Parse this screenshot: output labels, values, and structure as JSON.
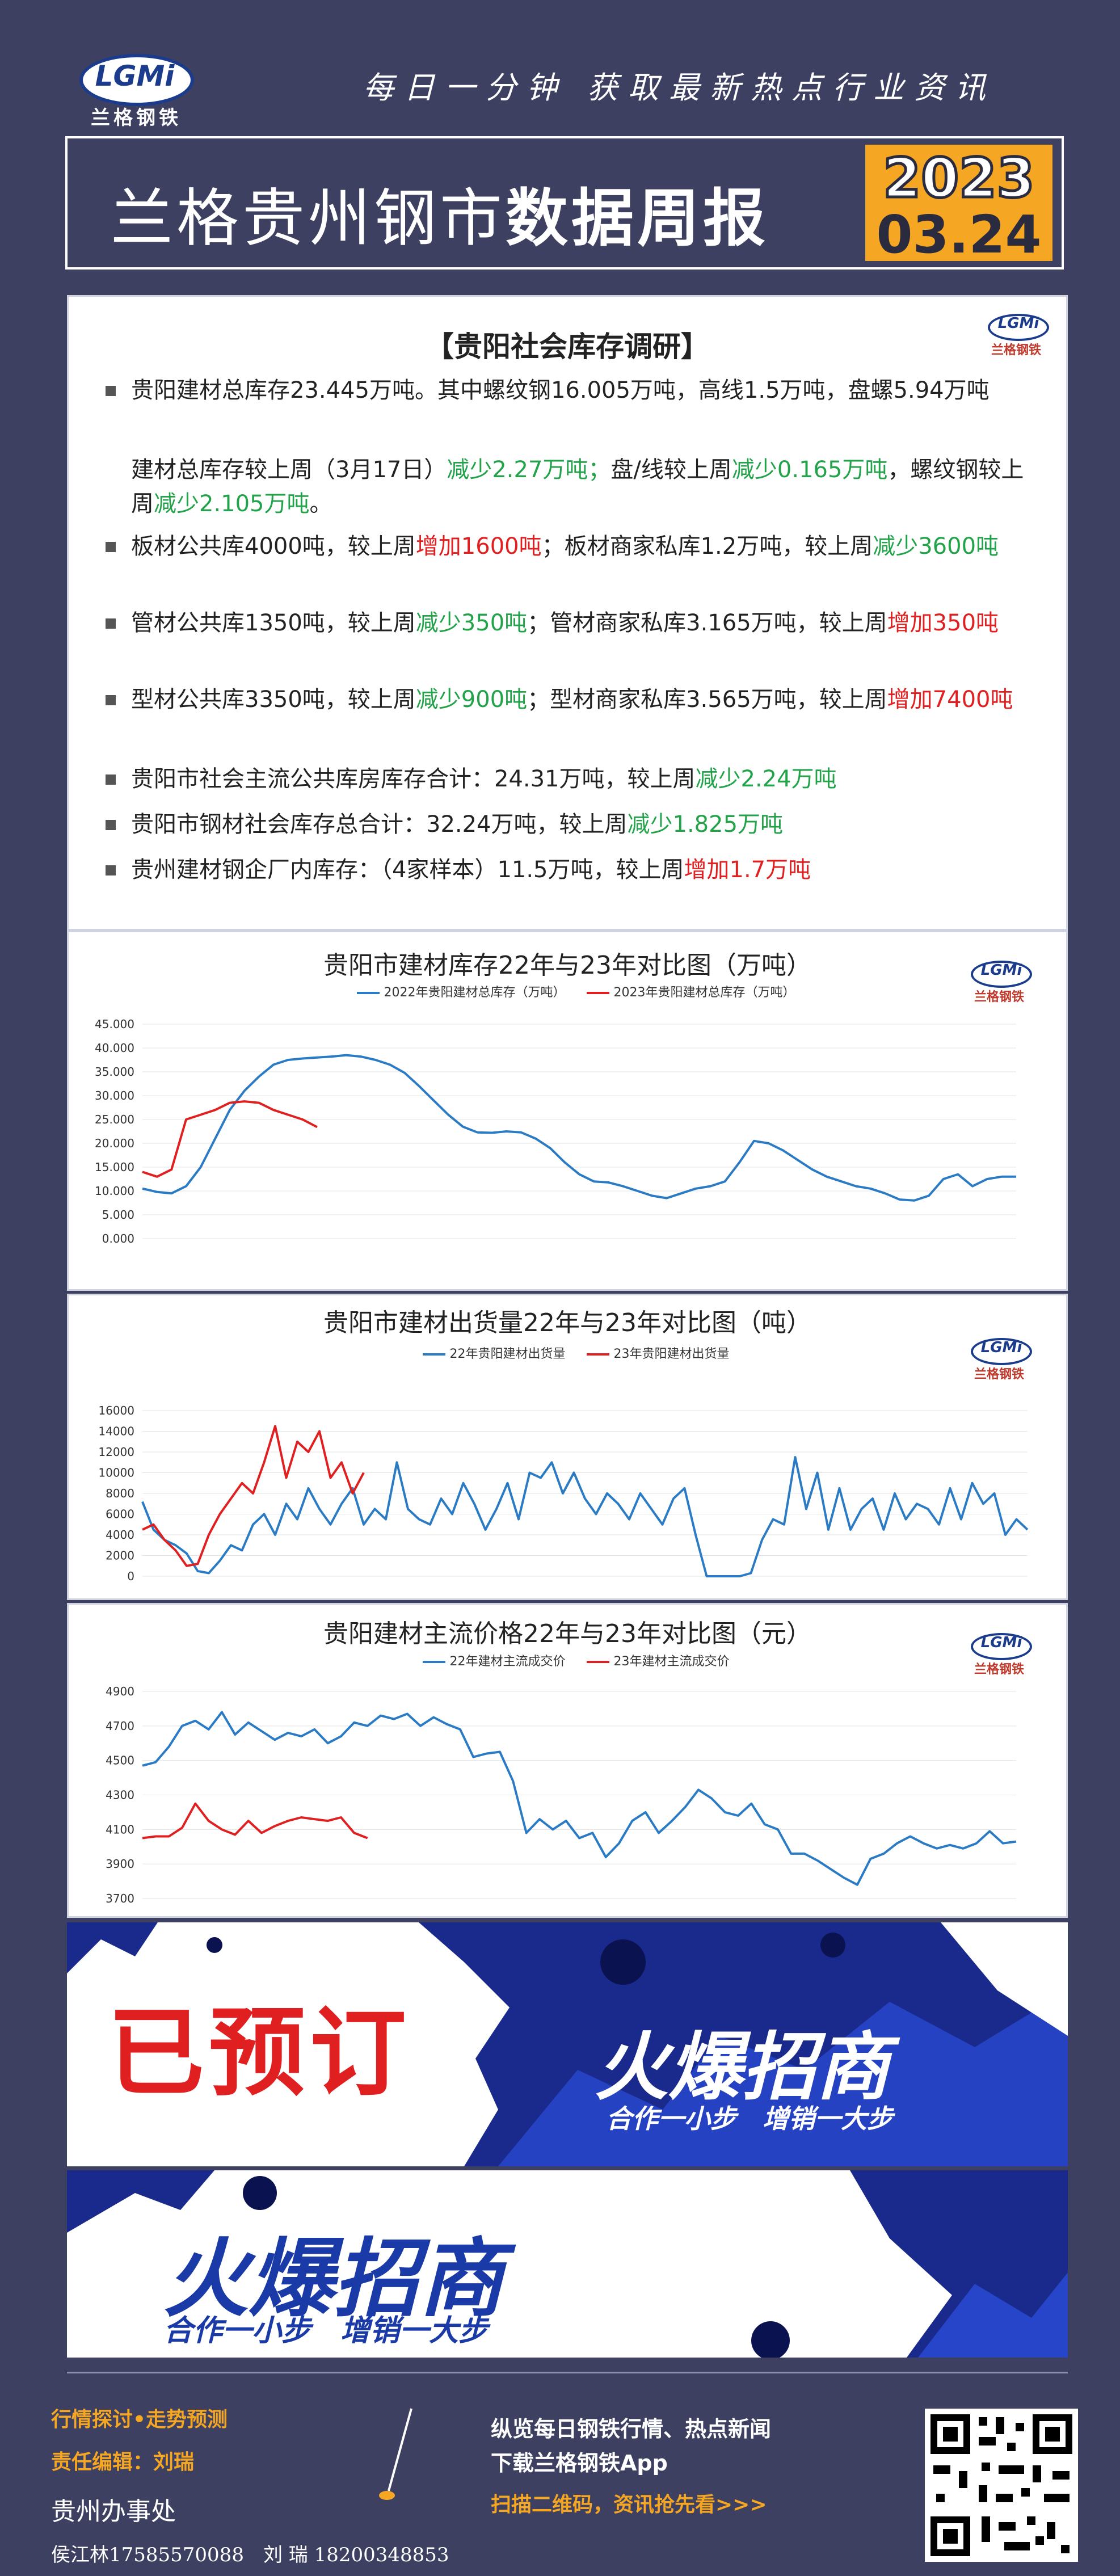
{
  "header": {
    "logo": "LGMi",
    "logo_sub": "兰格钢铁",
    "slogan": "每日一分钟 获取最新热点行业资讯",
    "title_light": "兰格贵州钢市",
    "title_bold": "数据周报",
    "year": "2023",
    "date": "03.24"
  },
  "survey": {
    "title": "【贵阳社会库存调研】",
    "lines": [
      {
        "a": "贵阳建材总库存23.445万吨。其中螺纹钢16.005万吨，高线1.5万吨，盘螺5.94万吨",
        "b": "",
        "c": "",
        "d": "",
        "e": ""
      },
      {
        "a": "建材总库存较上周（3月17日）",
        "b": "减少2.27万吨；",
        "c": "盘/线较上周",
        "d": "减少0.165万吨",
        "e": "，螺纹钢较上周",
        "f": "减少2.105万吨",
        "g": "。"
      },
      {
        "a": "板材公共库4000吨，较上周",
        "b": "增加1600吨",
        "c": "；板材商家私库1.2万吨，较上周",
        "d": "减少3600吨"
      },
      {
        "a": "管材公共库1350吨，较上周",
        "b": "减少350吨",
        "c": "；管材商家私库3.165万吨，较上周",
        "d": "增加350吨"
      },
      {
        "a": "型材公共库3350吨，较上周",
        "b": "减少900吨",
        "c": "；型材商家私库3.565万吨，较上周",
        "d": "增加7400吨"
      },
      {
        "a": "贵阳市社会主流公共库房库存合计：24.31万吨，较上周",
        "b": "减少2.24万吨"
      },
      {
        "a": "贵阳市钢材社会库存总合计：32.24万吨，较上周",
        "b": "减少1.825万吨"
      },
      {
        "a": "贵州建材钢企厂内库存：（4家样本）11.5万吨，较上周",
        "b": "增加1.7万吨"
      }
    ]
  },
  "colors": {
    "blue": "#2a7bc4",
    "red": "#e02020",
    "green": "#22a34a",
    "bg": "#3d4060",
    "accent": "#f5a623"
  },
  "chart_data": [
    {
      "type": "line",
      "title": "贵阳市建材库存22年与23年对比图（万吨）",
      "series": [
        {
          "name": "2022年贵阳建材总库存（万吨）",
          "values": [
            10.5,
            9.8,
            9.5,
            11,
            15,
            21,
            27,
            31,
            34,
            36.5,
            37.5,
            37.8,
            38,
            38.2,
            38.5,
            38.2,
            37.5,
            36.5,
            34.8,
            32,
            29,
            26,
            23.5,
            22.3,
            22.2,
            22.5,
            22.3,
            21,
            19,
            16,
            13.5,
            12,
            11.8,
            11,
            10,
            9,
            8.5,
            9.5,
            10.5,
            11,
            12,
            16,
            20.5,
            20,
            18.5,
            16.5,
            14.5,
            13,
            12,
            11,
            10.5,
            9.5,
            8.2,
            8,
            9,
            12.5,
            13.5,
            11,
            12.5,
            13,
            13
          ]
        },
        {
          "name": "2023年贵阳建材总库存（万吨）",
          "values": [
            14,
            13,
            14.5,
            25,
            26,
            27,
            28.5,
            28.8,
            28.5,
            27,
            26,
            25,
            23.4
          ]
        }
      ],
      "ylim": [
        0,
        45
      ],
      "ytick_labels": [
        "0.000",
        "5.000",
        "10.000",
        "15.000",
        "20.000",
        "25.000",
        "30.000",
        "35.000",
        "40.000",
        "45.000"
      ]
    },
    {
      "type": "line",
      "title": "贵阳市建材出货量22年与23年对比图（吨）",
      "series": [
        {
          "name": "22年贵阳建材出货量",
          "values": [
            7200,
            4500,
            3500,
            3000,
            2200,
            500,
            300,
            1500,
            3000,
            2500,
            5000,
            6000,
            4000,
            7000,
            5500,
            8500,
            6500,
            5000,
            7000,
            8500,
            5000,
            6500,
            5500,
            11000,
            6500,
            5500,
            5000,
            7500,
            6000,
            9000,
            7000,
            4500,
            6500,
            9000,
            5500,
            10000,
            9500,
            11000,
            8000,
            10000,
            7500,
            6000,
            8000,
            7000,
            5500,
            8000,
            6500,
            5000,
            7500,
            8500,
            4000,
            0,
            0,
            0,
            0,
            300,
            3500,
            5500,
            5000,
            11500,
            6500,
            10000,
            4500,
            8500,
            4500,
            6500,
            7500,
            4500,
            8000,
            5500,
            7000,
            6500,
            5000,
            8500,
            5500,
            9000,
            7000,
            8000,
            4000,
            5500,
            4500
          ]
        },
        {
          "name": "23年贵阳建材出货量",
          "values": [
            4500,
            5000,
            3500,
            2500,
            1000,
            1200,
            4000,
            6000,
            7500,
            9000,
            8000,
            11000,
            14500,
            9500,
            13000,
            12000,
            14000,
            9500,
            11000,
            8000,
            10000
          ]
        }
      ],
      "ylim": [
        0,
        16000
      ],
      "ytick_labels": [
        "0",
        "2000",
        "4000",
        "6000",
        "8000",
        "10000",
        "12000",
        "14000",
        "16000"
      ]
    },
    {
      "type": "line",
      "title": "贵阳建材主流价格22年与23年对比图（元）",
      "series": [
        {
          "name": "22年建材主流成交价",
          "values": [
            4470,
            4490,
            4580,
            4700,
            4730,
            4680,
            4780,
            4650,
            4720,
            4670,
            4620,
            4660,
            4640,
            4680,
            4600,
            4640,
            4720,
            4700,
            4760,
            4740,
            4770,
            4700,
            4750,
            4710,
            4680,
            4520,
            4540,
            4550,
            4380,
            4080,
            4160,
            4100,
            4150,
            4050,
            4080,
            3940,
            4020,
            4150,
            4200,
            4080,
            4150,
            4230,
            4330,
            4280,
            4200,
            4180,
            4250,
            4130,
            4100,
            3960,
            3960,
            3920,
            3870,
            3820,
            3780,
            3930,
            3960,
            4020,
            4060,
            4020,
            3990,
            4010,
            3990,
            4020,
            4090,
            4020,
            4030
          ]
        },
        {
          "name": "23年建材主流成交价",
          "values": [
            4050,
            4060,
            4060,
            4110,
            4250,
            4150,
            4100,
            4070,
            4150,
            4080,
            4120,
            4150,
            4170,
            4160,
            4150,
            4170,
            4080,
            4050
          ]
        }
      ],
      "ylim": [
        3700,
        4900
      ],
      "ytick_labels": [
        "3700",
        "3900",
        "4100",
        "4300",
        "4500",
        "4700",
        "4900"
      ]
    }
  ],
  "ads": {
    "booked": "已预订",
    "title": "火爆招商",
    "sub": "合作一小步　增销一大步"
  },
  "footer": {
    "tag": "行情探讨•走势预测",
    "editor": "责任编辑：刘瑞",
    "office": "贵州办事处",
    "contacts": "侯江林17585570088　刘 瑞 18200348853",
    "promo1": "纵览每日钢铁行情、热点新闻",
    "promo2": "下载兰格钢铁App",
    "promo3": "扫描二维码，资讯抢先看>>>"
  }
}
